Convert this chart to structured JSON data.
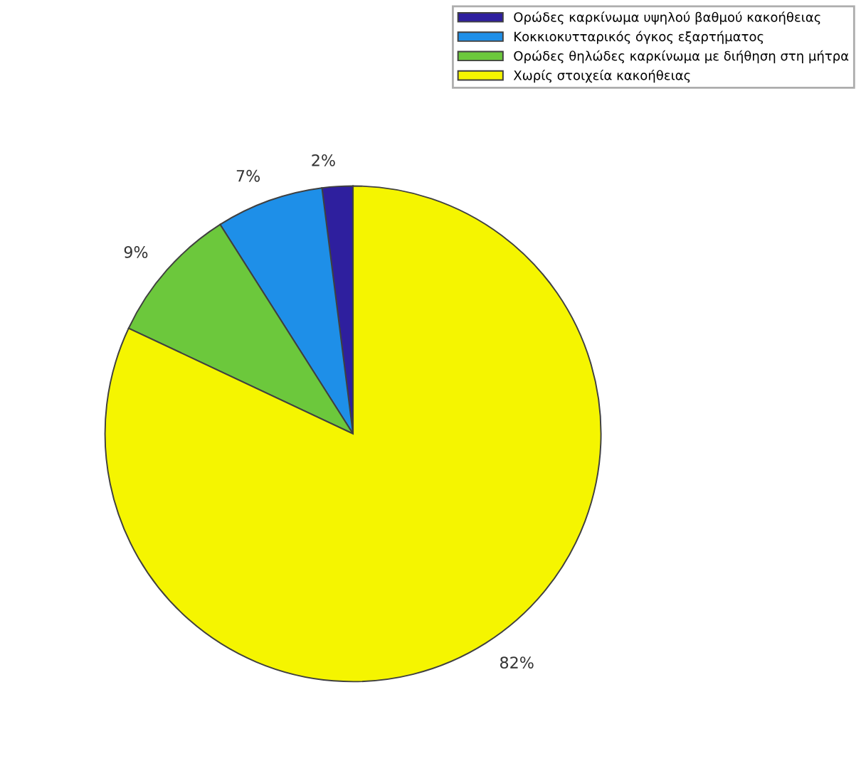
{
  "chart_data": {
    "type": "pie",
    "categories": [
      "Ορώδες καρκίνωμα υψηλού βαθμού κακοήθειας",
      "Κοκκιοκυτταρικός όγκος εξαρτήματος",
      "Ορώδες θηλώδες καρκίνωμα με διήθηση στη μήτρα",
      "Χωρίς στοιχεία κακοήθειας"
    ],
    "values": [
      2,
      7,
      9,
      82
    ],
    "value_labels": [
      "2%",
      "7%",
      "9%",
      "82%"
    ],
    "colors": [
      "#2e1f9e",
      "#1e8fe8",
      "#6cc83c",
      "#f5f500"
    ],
    "legend": "top right"
  }
}
